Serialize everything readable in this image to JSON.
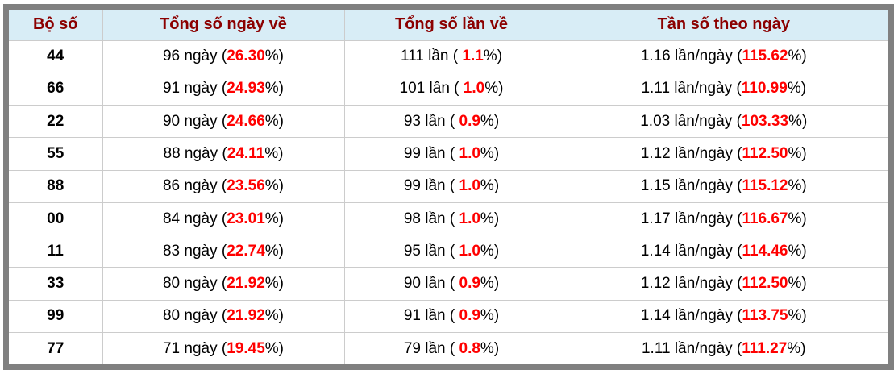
{
  "colors": {
    "header_bg": "#d8edf6",
    "header_text": "#8b0000",
    "highlight_red": "#ff0000",
    "frame_gray": "#808080",
    "grid_line": "#cccccc",
    "cell_text": "#000000",
    "row_bg": "#ffffff"
  },
  "table": {
    "headers": [
      "Bộ số",
      "Tổng số ngày về",
      "Tổng số lần về",
      "Tần số theo ngày"
    ],
    "rows": [
      {
        "pair": "44",
        "days_prefix": "96 ngày (",
        "days_pct": "26.30",
        "days_suffix": "%)",
        "times_prefix": "111 lần ( ",
        "times_pct": "1.1",
        "times_suffix": "%)",
        "freq_prefix": "1.16 lần/ngày (",
        "freq_pct": "115.62",
        "freq_suffix": "%)"
      },
      {
        "pair": "66",
        "days_prefix": "91 ngày (",
        "days_pct": "24.93",
        "days_suffix": "%)",
        "times_prefix": "101 lần ( ",
        "times_pct": "1.0",
        "times_suffix": "%)",
        "freq_prefix": "1.11 lần/ngày (",
        "freq_pct": "110.99",
        "freq_suffix": "%)"
      },
      {
        "pair": "22",
        "days_prefix": "90 ngày (",
        "days_pct": "24.66",
        "days_suffix": "%)",
        "times_prefix": "93 lần ( ",
        "times_pct": "0.9",
        "times_suffix": "%)",
        "freq_prefix": "1.03 lần/ngày (",
        "freq_pct": "103.33",
        "freq_suffix": "%)"
      },
      {
        "pair": "55",
        "days_prefix": "88 ngày (",
        "days_pct": "24.11",
        "days_suffix": "%)",
        "times_prefix": "99 lần ( ",
        "times_pct": "1.0",
        "times_suffix": "%)",
        "freq_prefix": "1.12 lần/ngày (",
        "freq_pct": "112.50",
        "freq_suffix": "%)"
      },
      {
        "pair": "88",
        "days_prefix": "86 ngày (",
        "days_pct": "23.56",
        "days_suffix": "%)",
        "times_prefix": "99 lần ( ",
        "times_pct": "1.0",
        "times_suffix": "%)",
        "freq_prefix": "1.15 lần/ngày (",
        "freq_pct": "115.12",
        "freq_suffix": "%)"
      },
      {
        "pair": "00",
        "days_prefix": "84 ngày (",
        "days_pct": "23.01",
        "days_suffix": "%)",
        "times_prefix": "98 lần ( ",
        "times_pct": "1.0",
        "times_suffix": "%)",
        "freq_prefix": "1.17 lần/ngày (",
        "freq_pct": "116.67",
        "freq_suffix": "%)"
      },
      {
        "pair": "11",
        "days_prefix": "83 ngày (",
        "days_pct": "22.74",
        "days_suffix": "%)",
        "times_prefix": "95 lần ( ",
        "times_pct": "1.0",
        "times_suffix": "%)",
        "freq_prefix": "1.14 lần/ngày (",
        "freq_pct": "114.46",
        "freq_suffix": "%)"
      },
      {
        "pair": "33",
        "days_prefix": "80 ngày (",
        "days_pct": "21.92",
        "days_suffix": "%)",
        "times_prefix": "90 lần ( ",
        "times_pct": "0.9",
        "times_suffix": "%)",
        "freq_prefix": "1.12 lần/ngày (",
        "freq_pct": "112.50",
        "freq_suffix": "%)"
      },
      {
        "pair": "99",
        "days_prefix": "80 ngày (",
        "days_pct": "21.92",
        "days_suffix": "%)",
        "times_prefix": "91 lần ( ",
        "times_pct": "0.9",
        "times_suffix": "%)",
        "freq_prefix": "1.14 lần/ngày (",
        "freq_pct": "113.75",
        "freq_suffix": "%)"
      },
      {
        "pair": "77",
        "days_prefix": "71 ngày (",
        "days_pct": "19.45",
        "days_suffix": "%)",
        "times_prefix": "79 lần ( ",
        "times_pct": "0.8",
        "times_suffix": "%)",
        "freq_prefix": "1.11 lần/ngày (",
        "freq_pct": "111.27",
        "freq_suffix": "%)"
      }
    ]
  },
  "chart_data": {
    "type": "table",
    "title": "",
    "columns": [
      "Bộ số",
      "Tổng số ngày về",
      "Tổng số lần về",
      "Tần số theo ngày"
    ],
    "rows": [
      [
        "44",
        "96 ngày (26.30%)",
        "111 lần ( 1.1%)",
        "1.16 lần/ngày (115.62%)"
      ],
      [
        "66",
        "91 ngày (24.93%)",
        "101 lần ( 1.0%)",
        "1.11 lần/ngày (110.99%)"
      ],
      [
        "22",
        "90 ngày (24.66%)",
        "93 lần ( 0.9%)",
        "1.03 lần/ngày (103.33%)"
      ],
      [
        "55",
        "88 ngày (24.11%)",
        "99 lần ( 1.0%)",
        "1.12 lần/ngày (112.50%)"
      ],
      [
        "88",
        "86 ngày (23.56%)",
        "99 lần ( 1.0%)",
        "1.15 lần/ngày (115.12%)"
      ],
      [
        "00",
        "84 ngày (23.01%)",
        "98 lần ( 1.0%)",
        "1.17 lần/ngày (116.67%)"
      ],
      [
        "11",
        "83 ngày (22.74%)",
        "95 lần ( 1.0%)",
        "1.14 lần/ngày (114.46%)"
      ],
      [
        "33",
        "80 ngày (21.92%)",
        "90 lần ( 0.9%)",
        "1.12 lần/ngày (112.50%)"
      ],
      [
        "99",
        "80 ngày (21.92%)",
        "91 lần ( 0.9%)",
        "1.14 lần/ngày (113.75%)"
      ],
      [
        "77",
        "71 ngày (19.45%)",
        "79 lần ( 0.8%)",
        "1.11 lần/ngày (111.27%)"
      ]
    ]
  }
}
